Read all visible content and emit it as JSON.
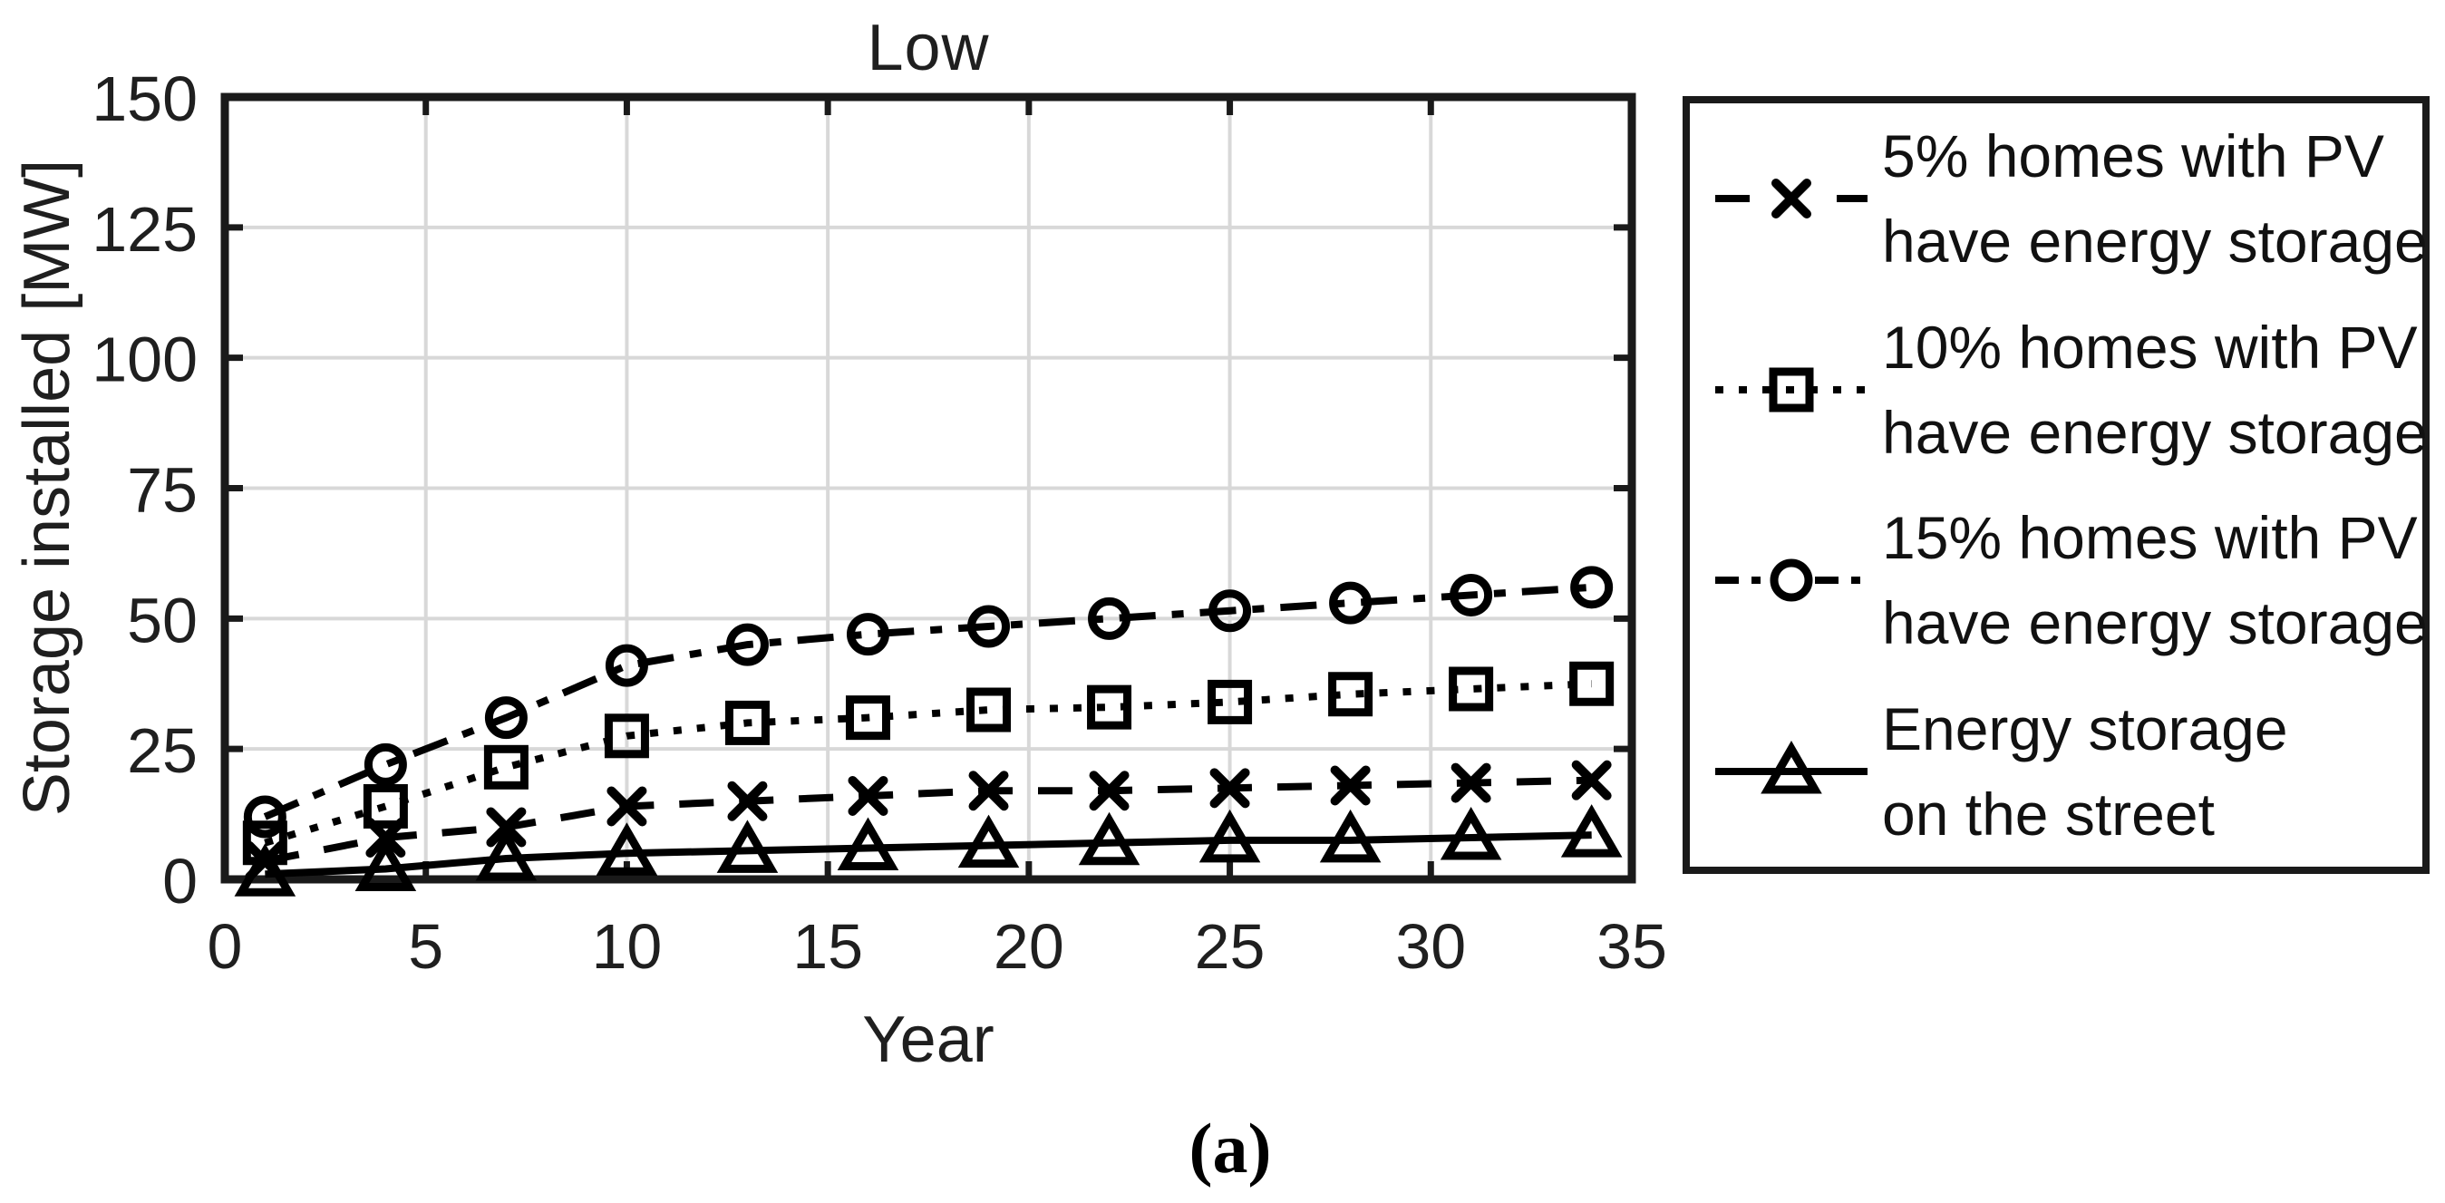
{
  "figure": {
    "caption": "(a)"
  },
  "chart_data": {
    "type": "line",
    "title": "Low",
    "xlabel": "Year",
    "ylabel": "Storage installed [MW]",
    "xlim": [
      0,
      35
    ],
    "ylim": [
      0,
      150
    ],
    "xticks": [
      0,
      5,
      10,
      15,
      20,
      25,
      30,
      35
    ],
    "yticks": [
      0,
      25,
      50,
      75,
      100,
      125,
      150
    ],
    "grid": true,
    "legend_position": "outside-right",
    "x": [
      1,
      4,
      7,
      10,
      13,
      16,
      19,
      22,
      25,
      28,
      31,
      34
    ],
    "series": [
      {
        "name": "5% homes with PV have energy storage",
        "label_lines": [
          "5% homes with PV",
          "have energy storage"
        ],
        "line_style": "dashed",
        "marker": "x",
        "color": "#000000",
        "values": [
          3.5,
          8,
          10,
          14,
          15,
          16,
          17,
          17,
          17.5,
          18,
          18.5,
          19
        ]
      },
      {
        "name": "10% homes with PV have energy storage",
        "label_lines": [
          "10% homes with PV",
          "have energy storage"
        ],
        "line_style": "dotted",
        "marker": "square",
        "color": "#000000",
        "values": [
          7,
          14,
          21.5,
          27.5,
          30,
          31,
          32.5,
          33,
          34,
          35.5,
          36.5,
          37.5
        ]
      },
      {
        "name": "15% homes with PV have energy storage",
        "label_lines": [
          "15% homes with PV",
          "have energy storage"
        ],
        "line_style": "dashdot",
        "marker": "circle",
        "color": "#000000",
        "values": [
          12,
          22,
          31,
          41,
          45,
          47,
          48.5,
          50,
          51.5,
          53,
          54.5,
          56
        ]
      },
      {
        "name": "Energy storage on the street",
        "label_lines": [
          "Energy storage",
          "on the street"
        ],
        "line_style": "solid",
        "marker": "triangle",
        "color": "#000000",
        "values": [
          1,
          2,
          4,
          5,
          5.5,
          6,
          6.5,
          7,
          7.5,
          7.5,
          8,
          8.5
        ]
      }
    ],
    "colors": {
      "axis": "#1a1a1a",
      "grid": "#d8d8d8",
      "text": "#1f1f1f",
      "background": "#ffffff"
    }
  }
}
